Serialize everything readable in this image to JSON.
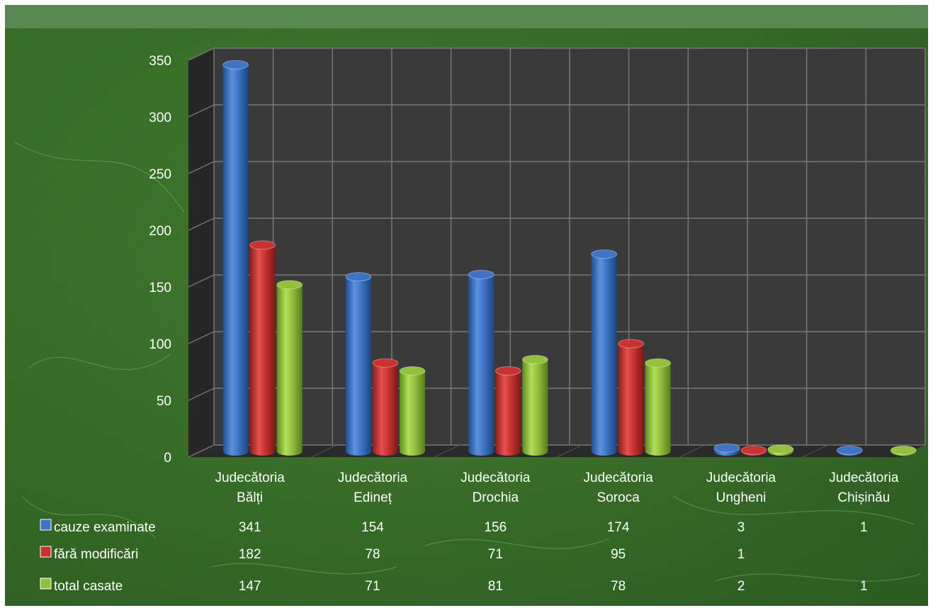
{
  "colors": {
    "background": "#3d6f2b",
    "plot_wall": "#3a3a3a",
    "grid": "#777777",
    "series": [
      "#3f74c4",
      "#c83332",
      "#93c13d"
    ]
  },
  "chart_data": {
    "type": "bar",
    "style": "3d-cylinder",
    "categories": [
      [
        "Judecătoria",
        "Bălți"
      ],
      [
        "Judecătoria",
        "Edineț"
      ],
      [
        "Judecătoria",
        "Drochia"
      ],
      [
        "Judecătoria",
        "Soroca"
      ],
      [
        "Judecătoria",
        "Ungheni"
      ],
      [
        "Judecătoria",
        "Chișinău"
      ]
    ],
    "series": [
      {
        "name": "cauze examinate",
        "values": [
          341,
          154,
          156,
          174,
          3,
          1
        ]
      },
      {
        "name": "fără modificări",
        "values": [
          182,
          78,
          71,
          95,
          1,
          null
        ]
      },
      {
        "name": "total casate",
        "values": [
          147,
          71,
          81,
          78,
          2,
          1
        ]
      }
    ],
    "ylim": [
      0,
      350
    ],
    "yticks": [
      0,
      50,
      100,
      150,
      200,
      250,
      300,
      350
    ],
    "grid": true,
    "legend": "data-table-below"
  }
}
